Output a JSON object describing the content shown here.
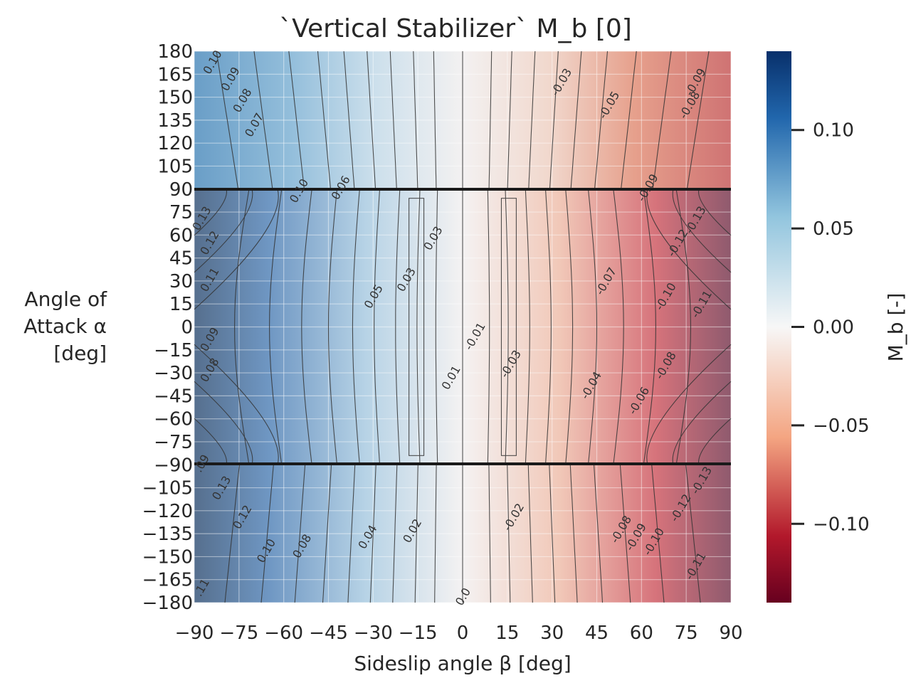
{
  "chart_data": {
    "type": "heatmap",
    "subtype": "filled-contour",
    "title": "`Vertical Stabilizer` M_b [0]",
    "xlabel": "Sideslip angle β [deg]",
    "ylabel_lines": [
      "Angle of",
      "Attack α",
      "[deg]"
    ],
    "xlim": [
      -90,
      90
    ],
    "ylim": [
      -180,
      180
    ],
    "x_ticks": [
      -90,
      -75,
      -60,
      -45,
      -30,
      -15,
      0,
      15,
      30,
      45,
      60,
      75,
      90
    ],
    "y_ticks": [
      180,
      165,
      150,
      135,
      120,
      105,
      90,
      75,
      60,
      45,
      30,
      15,
      0,
      -15,
      -30,
      -45,
      -60,
      -75,
      -90,
      -105,
      -120,
      -135,
      -150,
      -165,
      -180
    ],
    "colormap": "RdBu",
    "colorbar": {
      "label": "M_b [-]",
      "range": [
        -0.14,
        0.14
      ],
      "ticks": [
        0.1,
        0.05,
        0.0,
        -0.05,
        -0.1
      ],
      "tick_labels": [
        "0.10",
        "0.05",
        "0.00",
        "−0.05",
        "−0.10"
      ]
    },
    "contour_labels": [
      {
        "beta": -84,
        "alpha": 173,
        "value": "0.10"
      },
      {
        "beta": -78,
        "alpha": 162,
        "value": "0.09"
      },
      {
        "beta": -74,
        "alpha": 148,
        "value": "0.08"
      },
      {
        "beta": -70,
        "alpha": 132,
        "value": "0.07"
      },
      {
        "beta": -55,
        "alpha": 89,
        "value": "0.10"
      },
      {
        "beta": -41,
        "alpha": 91,
        "value": "0.06"
      },
      {
        "beta": -88,
        "alpha": 71,
        "value": "0.13"
      },
      {
        "beta": -85,
        "alpha": 55,
        "value": "0.12"
      },
      {
        "beta": -85,
        "alpha": 31,
        "value": "0.11"
      },
      {
        "beta": -85,
        "alpha": -8,
        "value": "0.09"
      },
      {
        "beta": -85,
        "alpha": -28,
        "value": "0.08"
      },
      {
        "beta": -30,
        "alpha": 20,
        "value": "0.05"
      },
      {
        "beta": -19,
        "alpha": 31,
        "value": "0.03"
      },
      {
        "beta": -10,
        "alpha": 58,
        "value": "0.03"
      },
      {
        "beta": -4,
        "alpha": -33,
        "value": "0.01"
      },
      {
        "beta": 4,
        "alpha": -6,
        "value": "-0.01"
      },
      {
        "beta": 16,
        "alpha": -24,
        "value": "-0.03"
      },
      {
        "beta": 33,
        "alpha": 160,
        "value": "-0.03"
      },
      {
        "beta": 49,
        "alpha": 145,
        "value": "-0.05"
      },
      {
        "beta": 78,
        "alpha": 160,
        "value": "-0.09"
      },
      {
        "beta": 76,
        "alpha": 145,
        "value": "-0.08"
      },
      {
        "beta": 62,
        "alpha": 91,
        "value": "-0.09"
      },
      {
        "beta": 78,
        "alpha": 70,
        "value": "-0.13"
      },
      {
        "beta": 72,
        "alpha": 55,
        "value": "-0.12"
      },
      {
        "beta": 48,
        "alpha": 30,
        "value": "-0.07"
      },
      {
        "beta": 68,
        "alpha": 20,
        "value": "-0.10"
      },
      {
        "beta": 80,
        "alpha": 15,
        "value": "-0.11"
      },
      {
        "beta": 68,
        "alpha": -25,
        "value": "-0.08"
      },
      {
        "beta": 43,
        "alpha": -38,
        "value": "-0.04"
      },
      {
        "beta": 59,
        "alpha": -48,
        "value": "-0.06"
      },
      {
        "beta": -90,
        "alpha": -89,
        "value": ".09"
      },
      {
        "beta": -81,
        "alpha": -105,
        "value": "0.13"
      },
      {
        "beta": -74,
        "alpha": -124,
        "value": "0.12"
      },
      {
        "beta": -66,
        "alpha": -146,
        "value": "0.10"
      },
      {
        "beta": -54,
        "alpha": -143,
        "value": "0.08"
      },
      {
        "beta": -32,
        "alpha": -137,
        "value": "0.04"
      },
      {
        "beta": -17,
        "alpha": -133,
        "value": "0.02"
      },
      {
        "beta": 17,
        "alpha": -124,
        "value": "-0.02"
      },
      {
        "beta": 0,
        "alpha": -176,
        "value": "0.0"
      },
      {
        "beta": 53,
        "alpha": -132,
        "value": "-0.08"
      },
      {
        "beta": 58,
        "alpha": -137,
        "value": "-0.09"
      },
      {
        "beta": 64,
        "alpha": -140,
        "value": "-0.10"
      },
      {
        "beta": 73,
        "alpha": -118,
        "value": "-0.12"
      },
      {
        "beta": 80,
        "alpha": -100,
        "value": "-0.13"
      },
      {
        "beta": 78,
        "alpha": -156,
        "value": "-0.11"
      },
      {
        "beta": -90,
        "alpha": -170,
        "value": ".11"
      }
    ]
  }
}
